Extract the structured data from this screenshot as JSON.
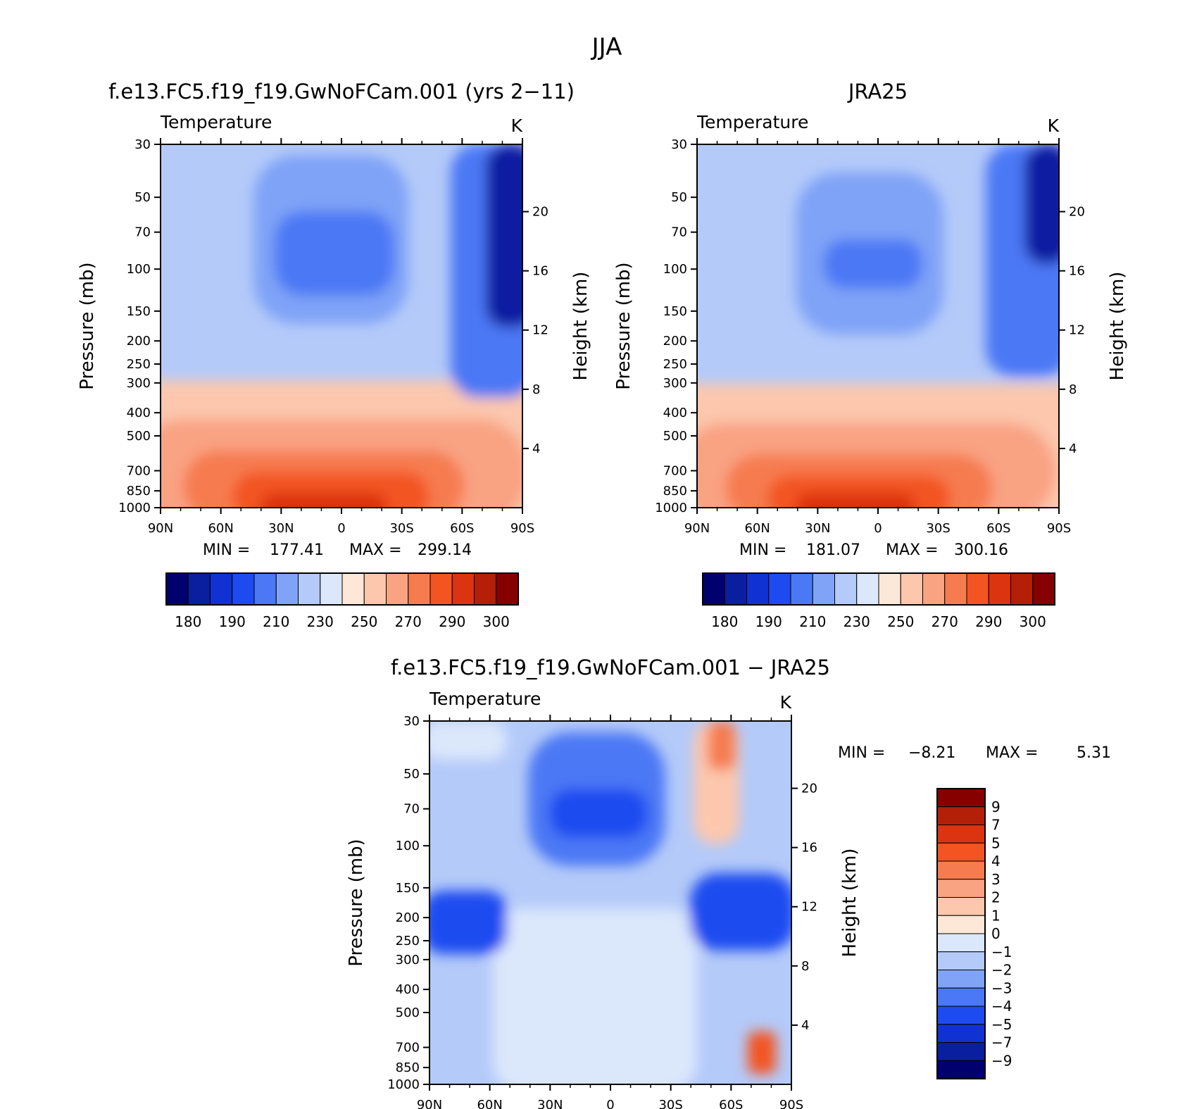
{
  "figure_title": "JJA",
  "colors": {
    "temperature": [
      "#00006e",
      "#0a1ea0",
      "#1032d2",
      "#1e4bf0",
      "#4b78f5",
      "#7fa3f7",
      "#b4caf9",
      "#dbe7fb",
      "#fde7d6",
      "#fcc7ad",
      "#f9a383",
      "#f67c50",
      "#f35422",
      "#dc3311",
      "#b41f08",
      "#870000"
    ],
    "difference": [
      "#00006e",
      "#0a1ea0",
      "#1032d2",
      "#1e4bf0",
      "#4b78f5",
      "#7fa3f7",
      "#b4caf9",
      "#dbe7fb",
      "#fde7d6",
      "#fcc7ad",
      "#f9a383",
      "#f67c50",
      "#f35422",
      "#dc3311",
      "#b41f08",
      "#870000"
    ]
  },
  "chart_data": [
    {
      "type": "heatmap",
      "subtitle": "f.e13.FC5.f19_f19.GwNoFCam.001 (yrs 2−11)",
      "variable": "Temperature",
      "units": "K",
      "xlabel": "",
      "ylabel": "Pressure (mb)",
      "ylabel_right": "Height (km)",
      "x_ticks": [
        "90N",
        "60N",
        "30N",
        "0",
        "30S",
        "60S",
        "90S"
      ],
      "y_ticks": [
        "30",
        "50",
        "70",
        "100",
        "150",
        "200",
        "250",
        "300",
        "400",
        "500",
        "700",
        "850",
        "1000"
      ],
      "height_ticks": [
        "20",
        "16",
        "12",
        "8",
        "4"
      ],
      "min_label": "MIN =",
      "min": "177.41",
      "max_label": "MAX =",
      "max": "299.14",
      "colorbar_labels": [
        "180",
        "190",
        "210",
        "230",
        "250",
        "270",
        "290",
        "300"
      ]
    },
    {
      "type": "heatmap",
      "subtitle": "JRA25",
      "variable": "Temperature",
      "units": "K",
      "xlabel": "",
      "ylabel": "Pressure (mb)",
      "ylabel_right": "Height (km)",
      "x_ticks": [
        "90N",
        "60N",
        "30N",
        "0",
        "30S",
        "60S",
        "90S"
      ],
      "y_ticks": [
        "30",
        "50",
        "70",
        "100",
        "150",
        "200",
        "250",
        "300",
        "400",
        "500",
        "700",
        "850",
        "1000"
      ],
      "height_ticks": [
        "20",
        "16",
        "12",
        "8",
        "4"
      ],
      "min_label": "MIN =",
      "min": "181.07",
      "max_label": "MAX =",
      "max": "300.16",
      "colorbar_labels": [
        "180",
        "190",
        "210",
        "230",
        "250",
        "270",
        "290",
        "300"
      ]
    },
    {
      "type": "heatmap",
      "subtitle": "f.e13.FC5.f19_f19.GwNoFCam.001 − JRA25",
      "variable": "Temperature",
      "units": "K",
      "xlabel": "",
      "ylabel": "Pressure (mb)",
      "ylabel_right": "Height (km)",
      "x_ticks": [
        "90N",
        "60N",
        "30N",
        "0",
        "30S",
        "60S",
        "90S"
      ],
      "y_ticks": [
        "30",
        "50",
        "70",
        "100",
        "150",
        "200",
        "250",
        "300",
        "400",
        "500",
        "700",
        "850",
        "1000"
      ],
      "height_ticks": [
        "20",
        "16",
        "12",
        "8",
        "4"
      ],
      "min_label": "MIN =",
      "min": "−8.21",
      "max_label": "MAX =",
      "max": "5.31",
      "colorbar_labels": [
        "9",
        "7",
        "5",
        "4",
        "3",
        "2",
        "1",
        "0",
        "−1",
        "−2",
        "−3",
        "−4",
        "−5",
        "−7",
        "−9"
      ]
    }
  ]
}
